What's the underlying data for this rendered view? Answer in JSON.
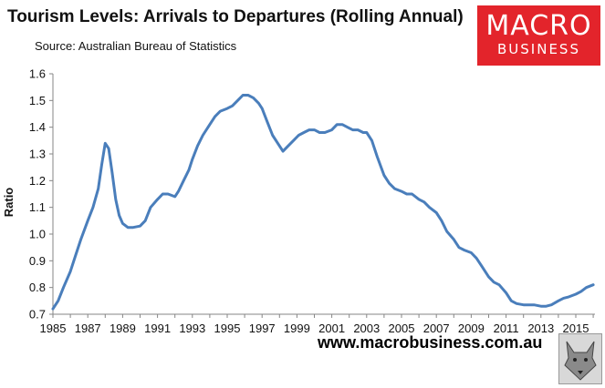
{
  "title": "Tourism Levels: Arrivals to Departures (Rolling Annual)",
  "source": "Source: Australian Bureau of Statistics",
  "logo": {
    "line1": "MACRO",
    "line2": "BUSINESS",
    "color": "#e3242b"
  },
  "footer_url": "www.macrobusiness.com.au",
  "chart_data": {
    "type": "line",
    "title": "Tourism Levels: Arrivals to Departures (Rolling Annual)",
    "xlabel": "",
    "ylabel": "Ratio",
    "xlim": [
      1985,
      2016.1
    ],
    "ylim": [
      0.7,
      1.6
    ],
    "yticks": [
      "0.7",
      "0.8",
      "0.9",
      "1.0",
      "1.1",
      "1.2",
      "1.3",
      "1.4",
      "1.5",
      "1.6"
    ],
    "xticks": [
      "1985",
      "1987",
      "1989",
      "1991",
      "1993",
      "1995",
      "1997",
      "1999",
      "2001",
      "2003",
      "2005",
      "2007",
      "2009",
      "2011",
      "2013",
      "2015"
    ],
    "grid": false,
    "line_color": "#4a7ebb",
    "series": [
      {
        "name": "Arrivals to Departures",
        "x": [
          1985.0,
          1985.3,
          1985.6,
          1986.0,
          1986.3,
          1986.6,
          1987.0,
          1987.3,
          1987.6,
          1987.8,
          1988.0,
          1988.2,
          1988.4,
          1988.6,
          1988.8,
          1989.0,
          1989.3,
          1989.6,
          1990.0,
          1990.3,
          1990.6,
          1991.0,
          1991.3,
          1991.6,
          1992.0,
          1992.2,
          1992.5,
          1992.8,
          1993.0,
          1993.3,
          1993.6,
          1994.0,
          1994.3,
          1994.6,
          1995.0,
          1995.3,
          1995.6,
          1995.9,
          1996.2,
          1996.5,
          1996.8,
          1997.0,
          1997.3,
          1997.6,
          1997.9,
          1998.2,
          1998.5,
          1998.8,
          1999.1,
          1999.4,
          1999.7,
          2000.0,
          2000.3,
          2000.6,
          2001.0,
          2001.3,
          2001.6,
          2001.9,
          2002.2,
          2002.5,
          2002.8,
          2003.0,
          2003.3,
          2003.6,
          2004.0,
          2004.3,
          2004.6,
          2005.0,
          2005.3,
          2005.6,
          2006.0,
          2006.3,
          2006.6,
          2007.0,
          2007.3,
          2007.6,
          2008.0,
          2008.3,
          2008.6,
          2009.0,
          2009.3,
          2009.6,
          2010.0,
          2010.3,
          2010.6,
          2011.0,
          2011.3,
          2011.6,
          2012.0,
          2012.3,
          2012.6,
          2013.0,
          2013.3,
          2013.6,
          2014.0,
          2014.3,
          2014.6,
          2015.0,
          2015.3,
          2015.6,
          2016.0
        ],
        "values": [
          0.72,
          0.75,
          0.8,
          0.86,
          0.92,
          0.98,
          1.05,
          1.1,
          1.17,
          1.26,
          1.34,
          1.32,
          1.23,
          1.13,
          1.07,
          1.04,
          1.025,
          1.025,
          1.03,
          1.05,
          1.1,
          1.13,
          1.15,
          1.15,
          1.14,
          1.16,
          1.2,
          1.24,
          1.28,
          1.33,
          1.37,
          1.41,
          1.44,
          1.46,
          1.47,
          1.48,
          1.5,
          1.52,
          1.52,
          1.51,
          1.49,
          1.47,
          1.42,
          1.37,
          1.34,
          1.31,
          1.33,
          1.35,
          1.37,
          1.38,
          1.39,
          1.39,
          1.38,
          1.38,
          1.39,
          1.41,
          1.41,
          1.4,
          1.39,
          1.39,
          1.38,
          1.38,
          1.35,
          1.29,
          1.22,
          1.19,
          1.17,
          1.16,
          1.15,
          1.15,
          1.13,
          1.12,
          1.1,
          1.08,
          1.05,
          1.01,
          0.98,
          0.95,
          0.94,
          0.93,
          0.91,
          0.88,
          0.84,
          0.82,
          0.81,
          0.78,
          0.75,
          0.74,
          0.735,
          0.735,
          0.735,
          0.73,
          0.73,
          0.735,
          0.75,
          0.76,
          0.765,
          0.775,
          0.785,
          0.8,
          0.81
        ]
      }
    ]
  }
}
